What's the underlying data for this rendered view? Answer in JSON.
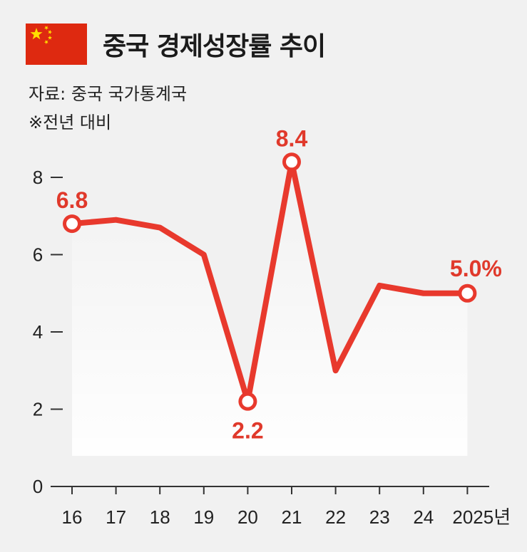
{
  "header": {
    "title": "중국 경제성장률 추이",
    "flag_colors": {
      "field": "#de2910",
      "stars": "#ffde00"
    }
  },
  "source": "자료: 중국 국가통계국",
  "note": "※전년 대비",
  "colors": {
    "line": "#e8392d",
    "axis": "#333333",
    "text": "#222222"
  },
  "chart_data": {
    "type": "line",
    "x": [
      "16",
      "17",
      "18",
      "19",
      "20",
      "21",
      "22",
      "23",
      "24",
      "2025년"
    ],
    "series": [
      {
        "values": [
          6.8,
          6.9,
          6.7,
          6.0,
          2.2,
          8.4,
          3.0,
          5.2,
          5.0,
          5.0
        ]
      }
    ],
    "ylim": [
      0,
      8
    ],
    "yticks": [
      0,
      2,
      4,
      6,
      8
    ],
    "annotations": [
      {
        "index": 0,
        "text": "6.8",
        "position": "above"
      },
      {
        "index": 4,
        "text": "2.2",
        "position": "below"
      },
      {
        "index": 5,
        "text": "8.4",
        "position": "above"
      },
      {
        "index": 9,
        "text": "5.0%",
        "position": "above"
      }
    ],
    "grid": false
  }
}
